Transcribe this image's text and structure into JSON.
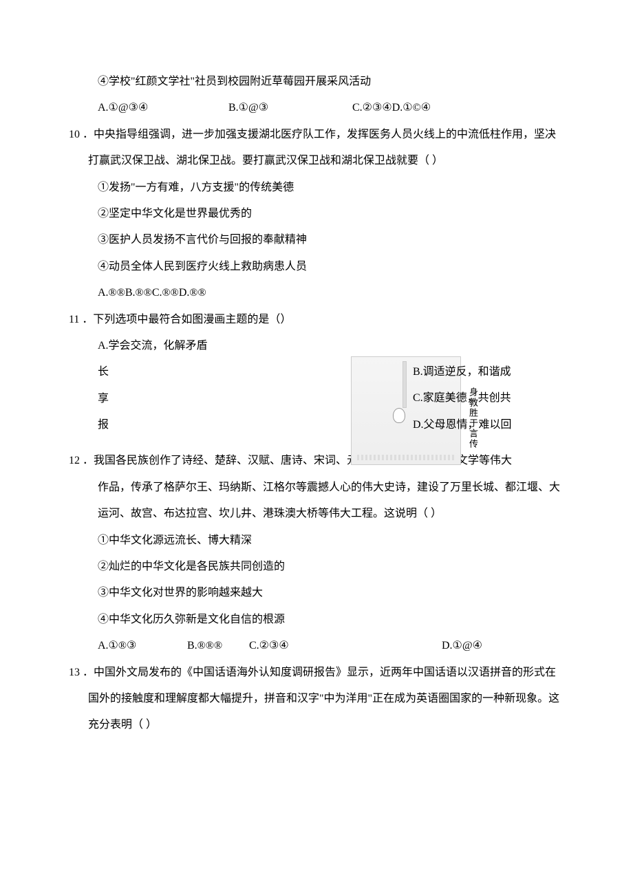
{
  "q9": {
    "item4": "④学校\"红颜文学社\"社员到校园附近草莓园开展采风活动",
    "options": {
      "a": "A.①@③④",
      "b": "B.①@③",
      "c": "C.②③④D.①©④"
    }
  },
  "q10": {
    "stem": "10 ．中央指导组强调，进一步加强支援湖北医疗队工作，发挥医务人员火线上的中流低柱作用，坚决打赢武汉保卫战、湖北保卫战。要打赢武汉保卫战和湖北保卫战就要（    ）",
    "i1": "①发扬\"一方有难，八方支援\"的传统美德",
    "i2": "②坚定中华文化是世界最优秀的",
    "i3": "③医护人员发扬不言代价与回报的奉献精神",
    "i4": "④动员全体人民到医疗火线上救助病患人员",
    "options": "A.®®B.®®C.®®D.®®"
  },
  "q11": {
    "stem": "11 ．下列选项中最符合如图漫画主题的是（）",
    "a": "A.学会交流，化解矛盾",
    "bl": "长",
    "cl": "享",
    "dl": "报",
    "b": "B.调适逆反，和谐成",
    "c": "C.家庭美德，共创共",
    "d": "D.父母恩情，难以回",
    "img_caption": "身教胜于言传"
  },
  "q12": {
    "stem1": "12 ．我国各民族创作了诗经、楚辞、汉赋、唐诗、宋词、元曲、明清小说和现代文学等伟大",
    "stem2": "作品，传承了格萨尔王、玛纳斯、江格尔等震撼人心的伟大史诗，建设了万里长城、都江堰、大运河、故宫、布达拉宫、坎儿井、港珠澳大桥等伟大工程。这说明（    ）",
    "i1": "①中华文化源远流长、博大精深",
    "i2": "②灿烂的中华文化是各民族共同创造的",
    "i3": "③中华文化对世界的影响越来越大",
    "i4": "④中华文化历久弥新是文化自信的根源",
    "options": {
      "a": "A.①®③",
      "b": "B.®®®",
      "c": "C.②③④",
      "d": "D.①@④"
    }
  },
  "q13": {
    "stem": "13 ．中国外文局发布的《中国话语海外认知度调研报告》显示，近两年中国话语以汉语拼音的形式在国外的接触度和理解度都大幅提升，拼音和汉字\"中为洋用\"正在成为英语圈国家的一种新现象。这充分表明（          ）"
  }
}
